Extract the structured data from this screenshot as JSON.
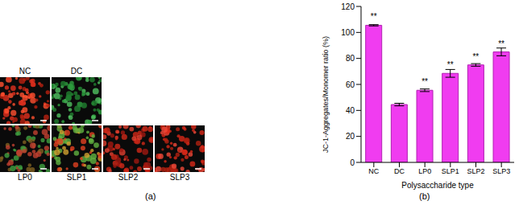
{
  "images": {
    "panel_label": "(a)",
    "labels": [
      "NC",
      "DC",
      "LP0",
      "SLP1",
      "SLP2",
      "SLP3"
    ]
  },
  "chart_data": {
    "type": "bar",
    "panel_label": "(b)",
    "x_label": "Polysaccharide type",
    "y_label": "JC-1-Aggregates/Monomer ratio (%)",
    "categories": [
      "NC",
      "DC",
      "LP0",
      "SLP1",
      "SLP2",
      "SLP3"
    ],
    "values": [
      105.5,
      44.5,
      55.5,
      68.5,
      75,
      85
    ],
    "errors": [
      0.5,
      1,
      1,
      3,
      1,
      3
    ],
    "annotations": [
      "**",
      null,
      "**",
      "**",
      "**",
      "**"
    ],
    "color": "#f03cf0",
    "ylim": [
      0,
      120
    ],
    "yticks": [
      0,
      20,
      40,
      60,
      80,
      100,
      120
    ],
    "grid": false
  }
}
